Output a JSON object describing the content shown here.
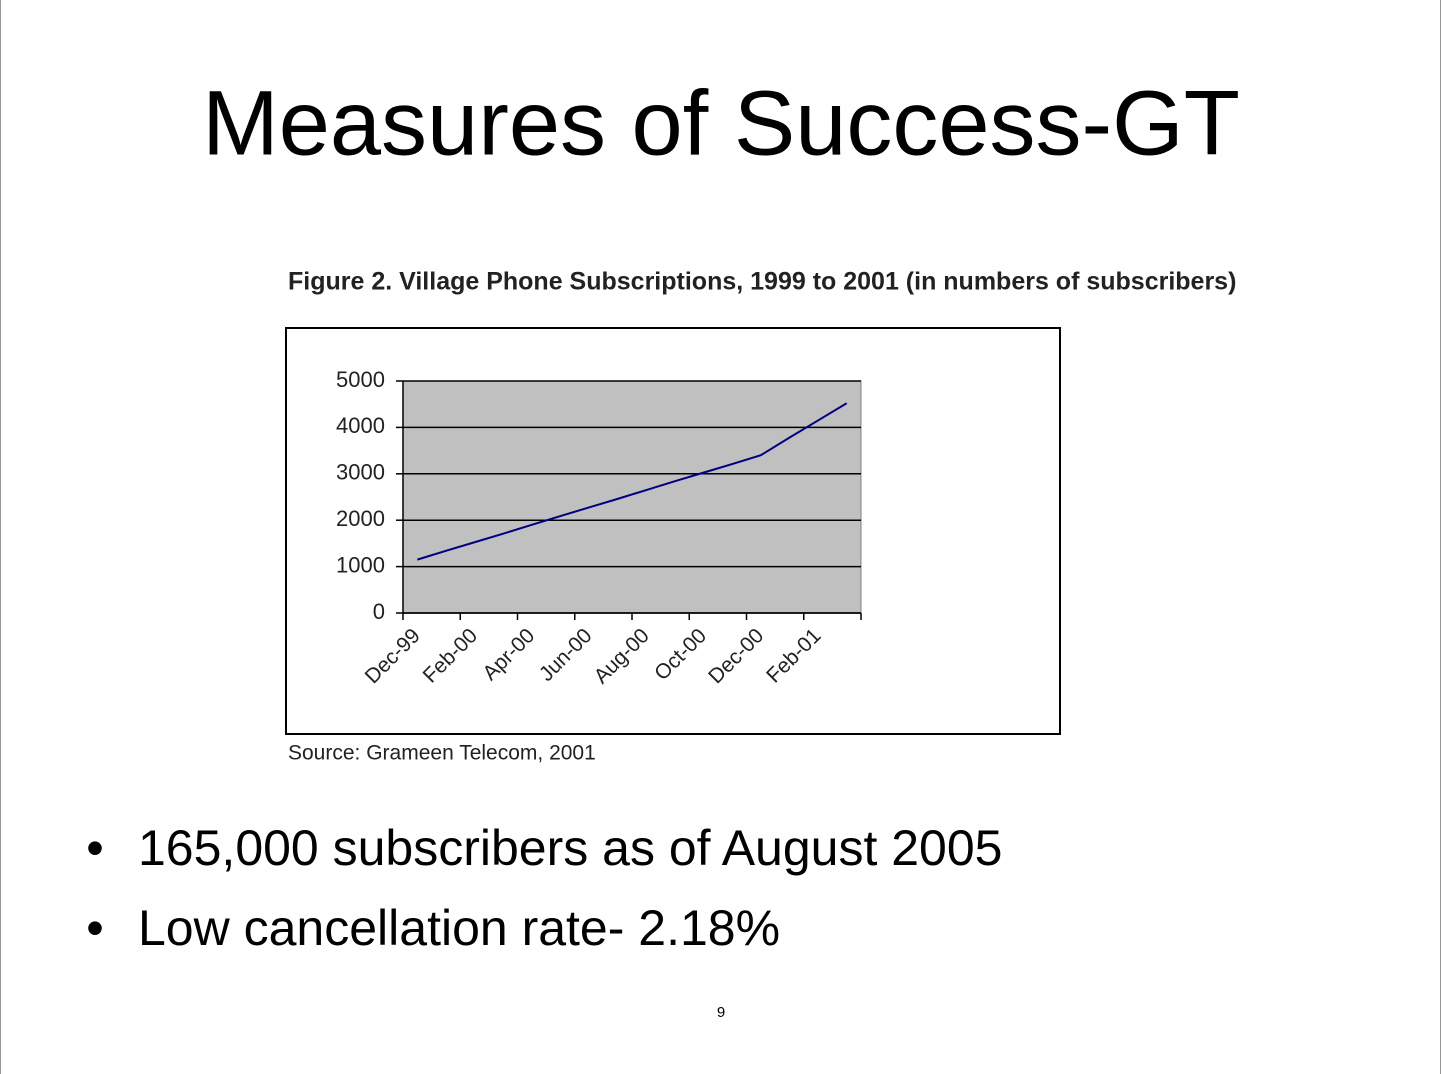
{
  "slide": {
    "title": "Measures of Success-GT",
    "bullets": [
      "165,000 subscribers as of August 2005",
      "Low cancellation rate- 2.18%"
    ],
    "page_number": "9"
  },
  "chart_data": {
    "type": "line",
    "title": "Figure 2.  Village Phone Subscriptions, 1999 to 2001 (in numbers of subscribers)",
    "source": "Source:  Grameen Telecom, 2001",
    "categories": [
      "Dec-99",
      null,
      "Feb-00",
      null,
      "Apr-00",
      null,
      "Jun-00",
      null,
      "Aug-00",
      null,
      "Oct-00",
      null,
      "Dec-00",
      null,
      "Feb-01",
      null
    ],
    "values": [
      1150,
      1340,
      1525,
      1710,
      1900,
      2090,
      2275,
      2460,
      2650,
      2840,
      3025,
      3210,
      3400,
      3780,
      4150,
      4520
    ],
    "color": "#000080",
    "plot_color": "#c0c0c0",
    "ylim": [
      0,
      5000
    ],
    "yticks": [
      0,
      1000,
      2000,
      3000,
      4000,
      5000
    ],
    "grid": true
  }
}
